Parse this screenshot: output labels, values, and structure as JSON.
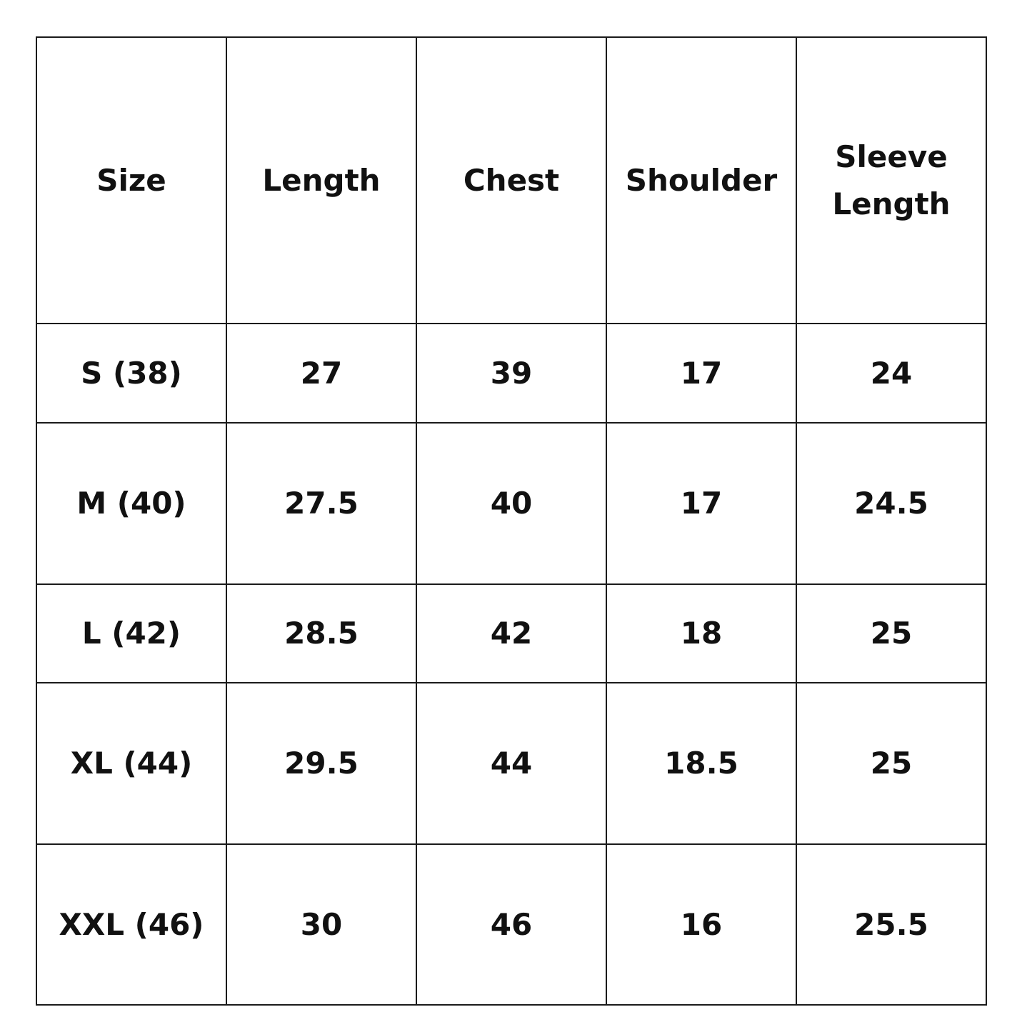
{
  "table": {
    "headers": [
      "Size",
      "Length",
      "Chest",
      "Shoulder",
      "Sleeve Length"
    ],
    "rows": [
      [
        "S (38)",
        "27",
        "39",
        "17",
        "24"
      ],
      [
        "M (40)",
        "27.5",
        "40",
        "17",
        "24.5"
      ],
      [
        "L (42)",
        "28.5",
        "42",
        "18",
        "25"
      ],
      [
        "XL (44)",
        "29.5",
        "44",
        "18.5",
        "25"
      ],
      [
        "XXL (46)",
        "30",
        "46",
        "16",
        "25.5"
      ]
    ]
  }
}
